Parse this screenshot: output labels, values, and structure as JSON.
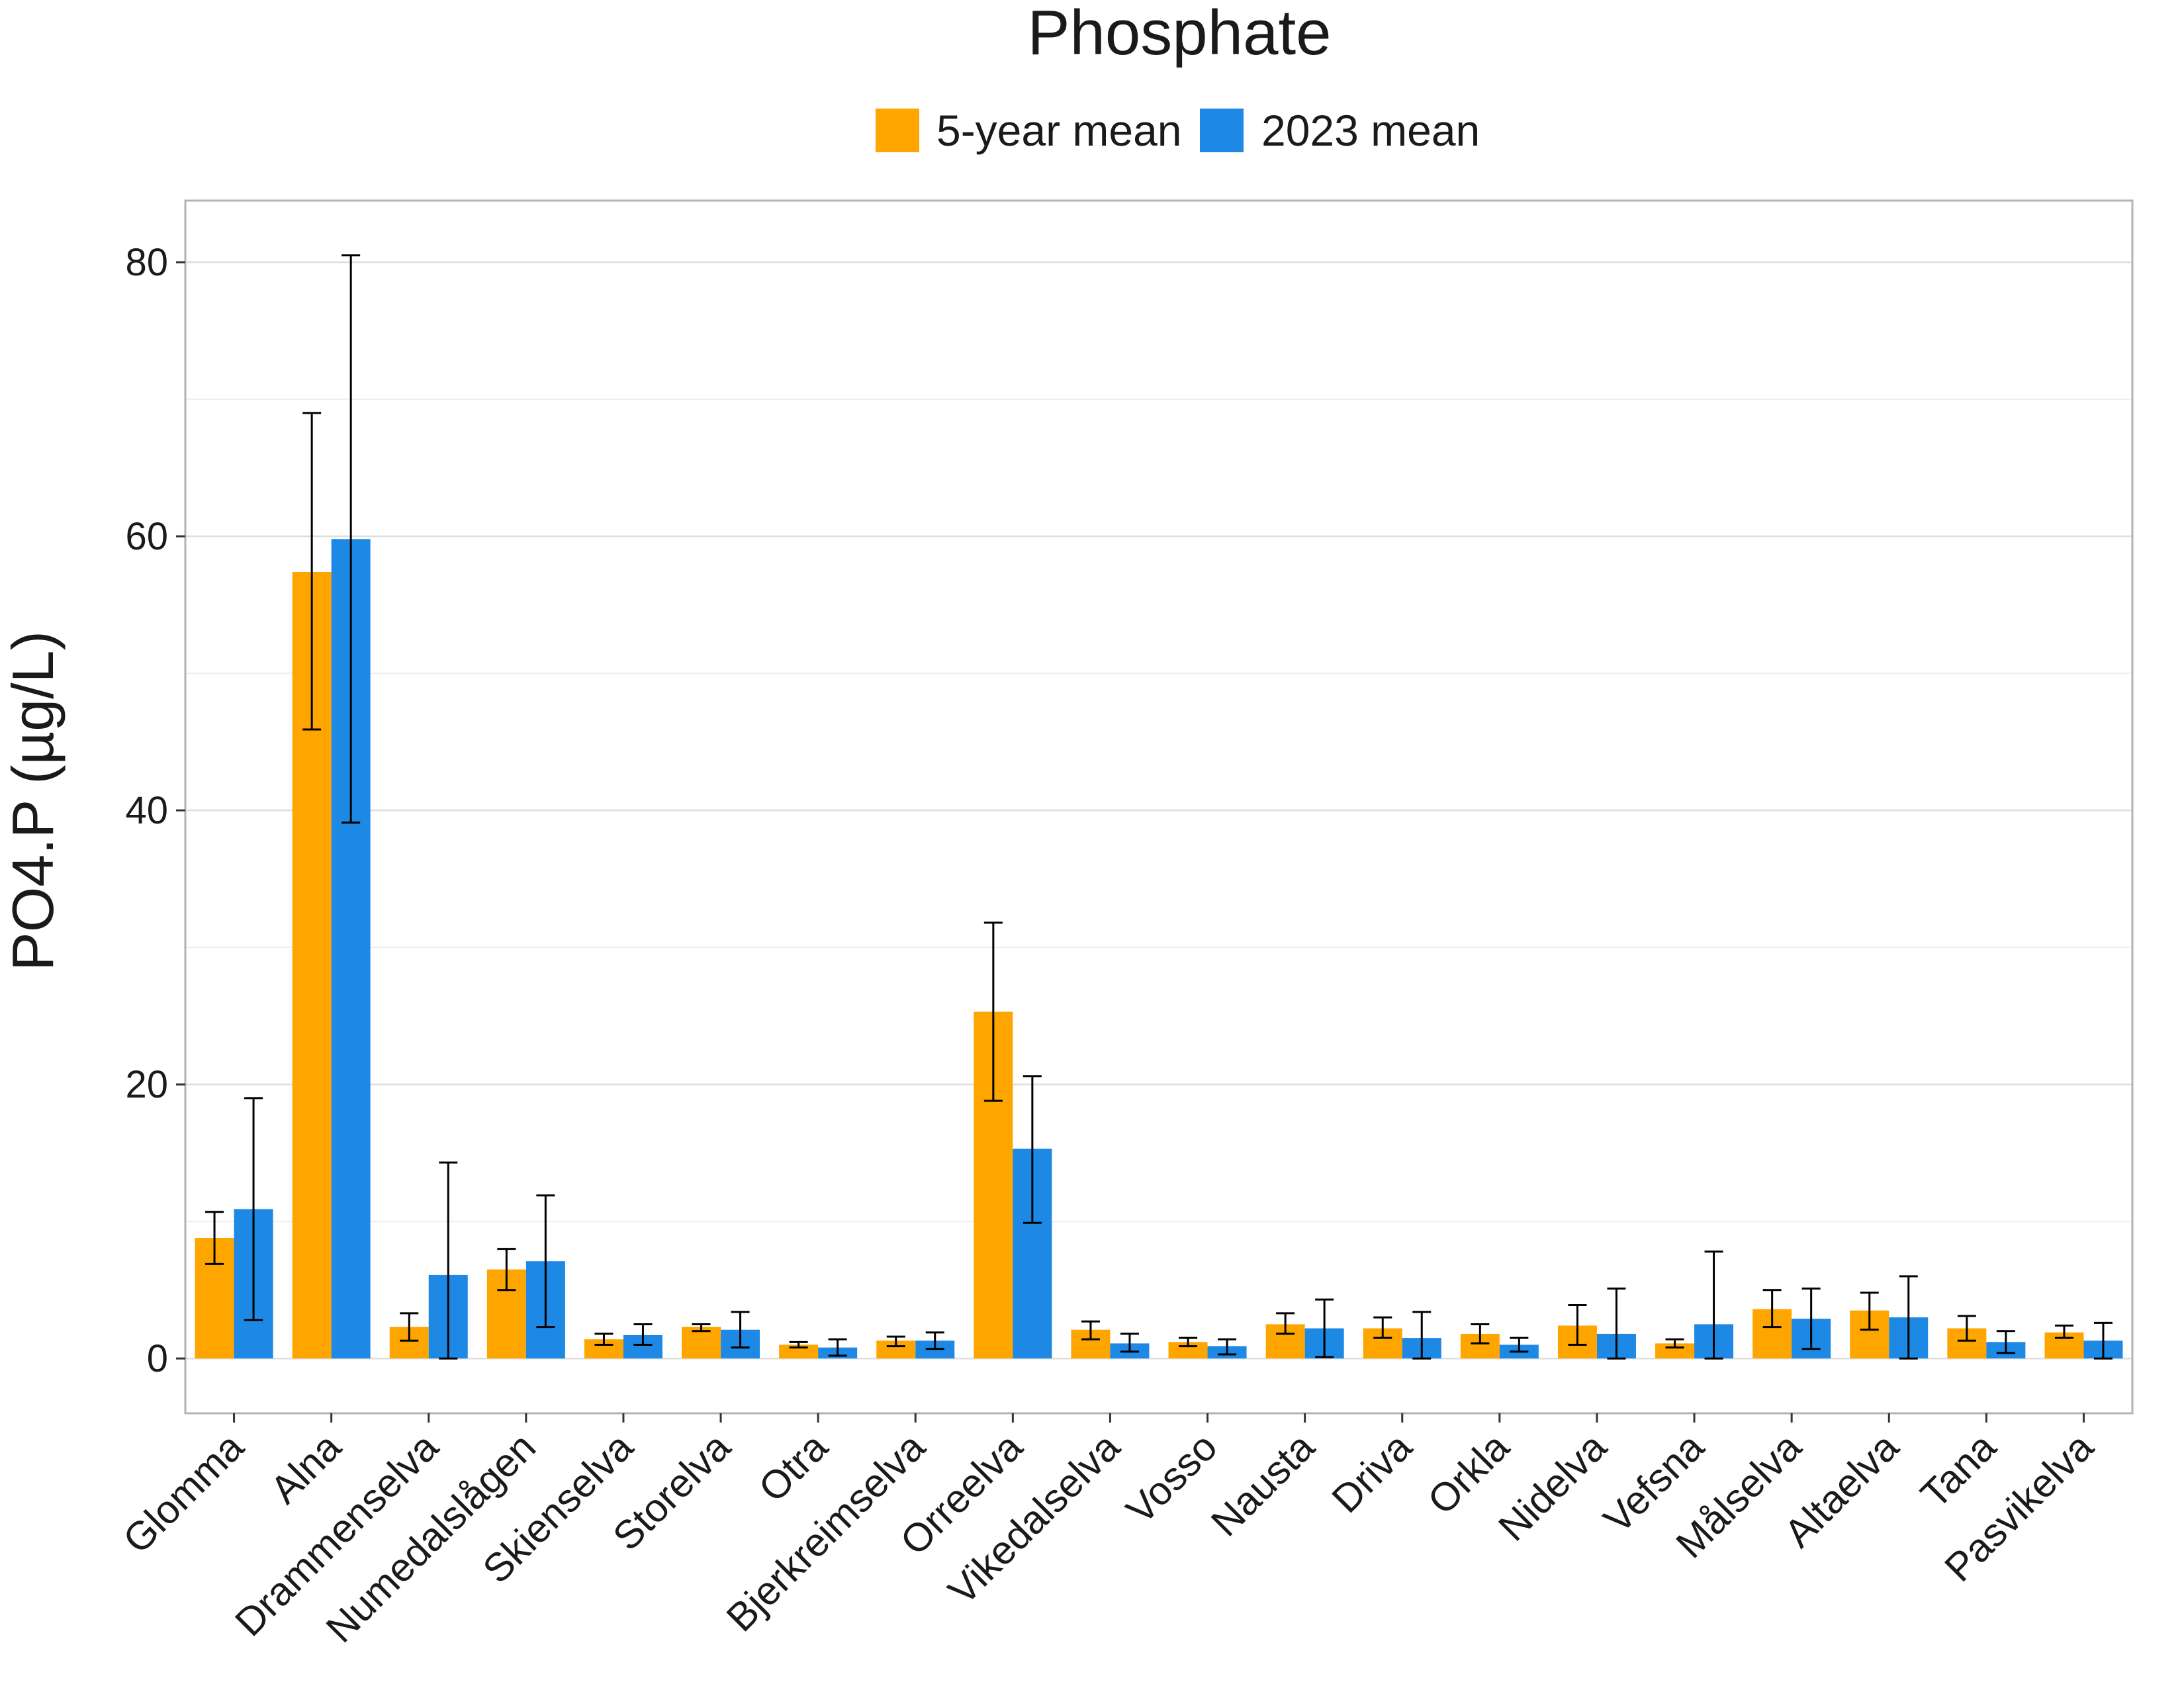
{
  "chart_data": {
    "type": "bar",
    "title": "Phosphate",
    "xlabel": "",
    "ylabel": "PO4.P (µg/L)",
    "ylim": [
      -4,
      84.5
    ],
    "yticks": [
      0,
      20,
      40,
      60,
      80
    ],
    "grid": true,
    "legend_position": "top-center",
    "categories": [
      "Glomma",
      "Alna",
      "Drammenselva",
      "Numedalslågen",
      "Skienselva",
      "Storelva",
      "Otra",
      "Bjerkreimselva",
      "Orreelva",
      "Vikedalselva",
      "Vosso",
      "Nausta",
      "Driva",
      "Orkla",
      "Nidelva",
      "Vefsna",
      "Målselva",
      "Altaelva",
      "Tana",
      "Pasvikelva"
    ],
    "series": [
      {
        "name": "5-year mean",
        "color": "#FFA500",
        "values": [
          8.8,
          57.4,
          2.3,
          6.5,
          1.4,
          2.3,
          1.0,
          1.3,
          25.3,
          2.1,
          1.2,
          2.5,
          2.2,
          1.8,
          2.4,
          1.1,
          3.6,
          3.5,
          2.2,
          1.9
        ],
        "err_low": [
          6.9,
          45.9,
          1.3,
          5.0,
          1.0,
          2.0,
          0.8,
          0.9,
          18.8,
          1.4,
          0.9,
          1.8,
          1.5,
          1.1,
          1.0,
          0.8,
          2.3,
          2.1,
          1.3,
          1.5
        ],
        "err_high": [
          10.7,
          69.0,
          3.3,
          8.0,
          1.8,
          2.5,
          1.2,
          1.6,
          31.8,
          2.7,
          1.5,
          3.3,
          3.0,
          2.5,
          3.9,
          1.4,
          5.0,
          4.8,
          3.1,
          2.4
        ]
      },
      {
        "name": "2023 mean",
        "color": "#1E88E5",
        "values": [
          10.9,
          59.8,
          6.1,
          7.1,
          1.7,
          2.1,
          0.8,
          1.3,
          15.3,
          1.1,
          0.9,
          2.2,
          1.5,
          1.0,
          1.8,
          2.5,
          2.9,
          3.0,
          1.2,
          1.3
        ],
        "err_low": [
          2.8,
          39.1,
          0.0,
          2.3,
          1.0,
          0.8,
          0.2,
          0.7,
          9.9,
          0.5,
          0.3,
          0.1,
          0.0,
          0.5,
          0.0,
          0.0,
          0.7,
          0.0,
          0.4,
          0.0
        ],
        "err_high": [
          19.0,
          80.5,
          14.3,
          11.9,
          2.5,
          3.4,
          1.4,
          1.9,
          20.6,
          1.8,
          1.4,
          4.3,
          3.4,
          1.5,
          5.1,
          7.8,
          5.1,
          6.0,
          2.0,
          2.6
        ]
      }
    ]
  }
}
